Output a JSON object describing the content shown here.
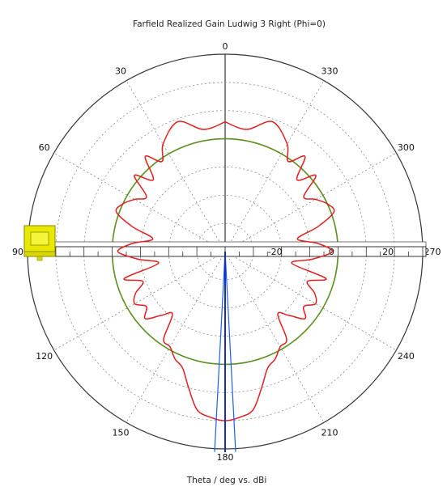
{
  "chart_data": {
    "type": "line",
    "subtype": "polar",
    "title": "Farfield Realized Gain Ludwig 3 Right (Phi=0)",
    "xlabel": "Theta / deg vs. dBi",
    "angle_ticks": [
      "0",
      "30",
      "60",
      "90",
      "120",
      "150",
      "180",
      "210",
      "240",
      "270",
      "300",
      "330"
    ],
    "angle_direction": "counterclockwise",
    "angle_zero": "top",
    "radial_ticks": [
      "-20",
      "0",
      "20"
    ],
    "radial_range": [
      -40,
      30
    ],
    "grid": true,
    "reference_level": 0,
    "reference_color": "#5a8f1e",
    "series_color": "#e02020",
    "beam_color": "#1f5ff0",
    "main_lobe_direction": 180,
    "series": [
      {
        "theta": [
          0,
          10,
          20,
          30,
          35,
          40,
          45,
          50,
          55,
          60,
          65,
          70,
          75,
          80,
          85,
          90,
          95,
          100,
          105,
          110,
          115,
          120,
          125,
          130,
          135,
          140,
          145,
          150,
          155,
          160,
          165,
          170,
          175,
          180,
          185,
          190,
          195,
          200,
          205,
          210,
          215,
          220,
          225,
          230,
          235,
          240,
          245,
          250,
          255,
          260,
          265,
          270,
          275,
          280,
          285,
          290,
          295,
          300,
          305,
          310,
          315,
          320,
          325,
          330,
          340,
          350,
          360
        ],
        "gain": [
          6,
          4,
          9,
          4,
          -1,
          4,
          -4,
          2,
          -6,
          -3,
          0,
          1,
          -6,
          -14,
          -7,
          -2,
          -9,
          -16,
          -3,
          -9,
          -5,
          -3,
          -6,
          -3,
          -8,
          -11,
          -2,
          -1,
          2,
          4,
          10,
          17,
          19,
          20,
          19,
          17,
          10,
          4,
          2,
          -1,
          -2,
          -11,
          -8,
          -3,
          -6,
          -3,
          -5,
          -9,
          -3,
          -16,
          -9,
          -2,
          -7,
          -14,
          -6,
          1,
          0,
          -3,
          -6,
          2,
          -4,
          4,
          -1,
          4,
          9,
          4,
          6
        ]
      }
    ]
  }
}
